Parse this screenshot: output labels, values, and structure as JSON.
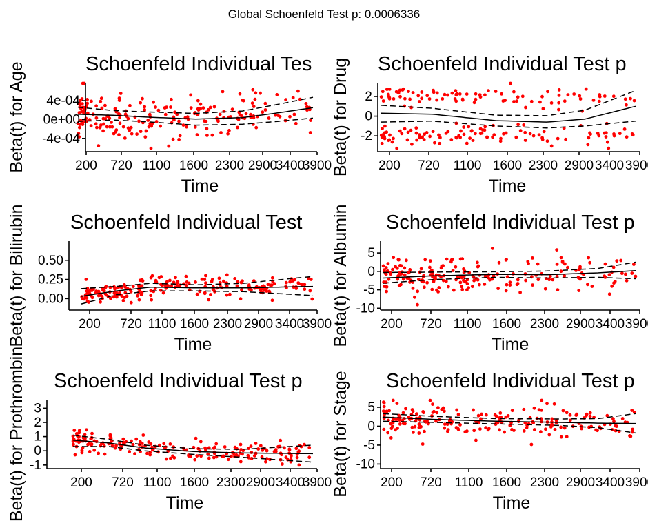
{
  "main_title": "Global Schoenfeld Test p: 0.0006336",
  "colors": {
    "points": "#ff0000",
    "line": "#000000",
    "background": "#ffffff"
  },
  "chart_data": [
    {
      "type": "scatter",
      "title": "Schoenfeld Individual Tes",
      "xlabel": "Time",
      "ylabel": "Beta(t) for Age",
      "xticks": [
        "200",
        "720",
        "1100",
        "1600",
        "2300",
        "2900",
        "3400",
        "3900"
      ],
      "yticks": [
        "4e-04",
        "0e+00",
        "-4e-04"
      ],
      "ytick_values": [
        0.0004,
        0,
        -0.0004
      ],
      "ylim": [
        -0.00068,
        0.00078
      ],
      "n_points": 210,
      "seed": 11,
      "point_spread": 0.00026,
      "fit": [
        [
          0,
          0.00011
        ],
        [
          0.15,
          9e-05
        ],
        [
          0.3,
          5e-05
        ],
        [
          0.5,
          1e-05
        ],
        [
          0.7,
          4e-05
        ],
        [
          0.85,
          0.00014
        ],
        [
          1,
          0.00025
        ]
      ],
      "upper": [
        [
          0,
          0.00026
        ],
        [
          0.15,
          0.00019
        ],
        [
          0.3,
          0.00016
        ],
        [
          0.5,
          0.00013
        ],
        [
          0.7,
          0.00018
        ],
        [
          0.85,
          0.00032
        ],
        [
          1,
          0.00047
        ]
      ],
      "lower": [
        [
          0,
          -4e-05
        ],
        [
          0.15,
          -1e-05
        ],
        [
          0.3,
          -5e-05
        ],
        [
          0.5,
          -0.00012
        ],
        [
          0.7,
          -0.0001
        ],
        [
          0.85,
          -4e-05
        ],
        [
          1,
          3e-05
        ]
      ]
    },
    {
      "type": "scatter",
      "title": "Schoenfeld Individual Test p",
      "xlabel": "Time",
      "ylabel": "Beta(t) for Drug",
      "xticks": [
        "200",
        "720",
        "1100",
        "1600",
        "2300",
        "2900",
        "3400",
        "3900"
      ],
      "yticks": [
        "2",
        "0",
        "-2"
      ],
      "ytick_values": [
        2,
        0,
        -2
      ],
      "ylim": [
        -3.6,
        3.4
      ],
      "n_points": 200,
      "seed": 23,
      "bimodal": true,
      "modes": [
        2.0,
        -2.0
      ],
      "point_spread": 0.5,
      "fit": [
        [
          0,
          0.3
        ],
        [
          0.2,
          0.2
        ],
        [
          0.45,
          -0.45
        ],
        [
          0.65,
          -0.6
        ],
        [
          0.8,
          -0.3
        ],
        [
          1,
          1.0
        ]
      ],
      "upper": [
        [
          0,
          1.1
        ],
        [
          0.2,
          0.8
        ],
        [
          0.45,
          0.1
        ],
        [
          0.65,
          0.05
        ],
        [
          0.8,
          0.6
        ],
        [
          1,
          2.6
        ]
      ],
      "lower": [
        [
          0,
          -0.6
        ],
        [
          0.2,
          -0.5
        ],
        [
          0.45,
          -1.0
        ],
        [
          0.65,
          -1.2
        ],
        [
          0.8,
          -1.0
        ],
        [
          1,
          -0.5
        ]
      ]
    },
    {
      "type": "scatter",
      "title": "Schoenfeld Individual Test",
      "xlabel": "Time",
      "ylabel": "Beta(t) for Bilirubin",
      "xticks": [
        "200",
        "720",
        "1100",
        "1600",
        "2300",
        "2900",
        "3400",
        "3900"
      ],
      "yticks": [
        "0.50",
        "0.25",
        "0.00"
      ],
      "ytick_values": [
        0.5,
        0.25,
        0
      ],
      "ylim": [
        -0.15,
        0.75
      ],
      "n_points": 210,
      "seed": 37,
      "point_spread": 0.07,
      "fit": [
        [
          0,
          0.03
        ],
        [
          0.15,
          0.1
        ],
        [
          0.3,
          0.15
        ],
        [
          0.5,
          0.14
        ],
        [
          0.7,
          0.14
        ],
        [
          1,
          0.16
        ]
      ],
      "upper": [
        [
          0,
          0.13
        ],
        [
          0.15,
          0.16
        ],
        [
          0.3,
          0.2
        ],
        [
          0.5,
          0.18
        ],
        [
          0.7,
          0.2
        ],
        [
          1,
          0.29
        ]
      ],
      "lower": [
        [
          0,
          -0.07
        ],
        [
          0.15,
          0.05
        ],
        [
          0.3,
          0.1
        ],
        [
          0.5,
          0.1
        ],
        [
          0.7,
          0.09
        ],
        [
          1,
          0.04
        ]
      ]
    },
    {
      "type": "scatter",
      "title": "Schoenfeld Individual Test p",
      "xlabel": "Time",
      "ylabel": "Beta(t) for Albumin",
      "xticks": [
        "200",
        "720",
        "1100",
        "1600",
        "2300",
        "2900",
        "3400",
        "3900"
      ],
      "yticks": [
        "5",
        "0",
        "-5",
        "-10"
      ],
      "ytick_values": [
        5,
        0,
        -5,
        -10
      ],
      "ylim": [
        -10.5,
        8.2
      ],
      "n_points": 210,
      "seed": 51,
      "point_spread": 2.4,
      "fit": [
        [
          0,
          -1.8
        ],
        [
          0.2,
          -1.2
        ],
        [
          0.45,
          -0.8
        ],
        [
          0.65,
          -0.9
        ],
        [
          0.85,
          -0.4
        ],
        [
          1,
          0.2
        ]
      ],
      "upper": [
        [
          0,
          -0.3
        ],
        [
          0.2,
          -0.2
        ],
        [
          0.45,
          -0.1
        ],
        [
          0.65,
          0.1
        ],
        [
          0.85,
          0.8
        ],
        [
          1,
          2.5
        ]
      ],
      "lower": [
        [
          0,
          -3.2
        ],
        [
          0.2,
          -2.2
        ],
        [
          0.45,
          -1.6
        ],
        [
          0.65,
          -1.8
        ],
        [
          0.85,
          -1.6
        ],
        [
          1,
          -2.0
        ]
      ]
    },
    {
      "type": "scatter",
      "title": "Schoenfeld Individual Test p",
      "xlabel": "Time",
      "ylabel": "Beta(t) for Prothrombin",
      "xticks": [
        "200",
        "720",
        "1100",
        "1600",
        "2300",
        "2900",
        "3400",
        "3900"
      ],
      "yticks": [
        "3",
        "2",
        "1",
        "0",
        "-1"
      ],
      "ytick_values": [
        3,
        2,
        1,
        0,
        -1
      ],
      "ylim": [
        -1.25,
        3.6
      ],
      "n_points": 200,
      "seed": 67,
      "point_spread": 0.35,
      "fit": [
        [
          0,
          0.75
        ],
        [
          0.15,
          0.55
        ],
        [
          0.3,
          0.2
        ],
        [
          0.5,
          -0.05
        ],
        [
          0.7,
          -0.15
        ],
        [
          1,
          -0.2
        ]
      ],
      "upper": [
        [
          0,
          1.1
        ],
        [
          0.15,
          0.8
        ],
        [
          0.3,
          0.4
        ],
        [
          0.5,
          0.15
        ],
        [
          0.7,
          0.1
        ],
        [
          1,
          0.4
        ]
      ],
      "lower": [
        [
          0,
          0.3
        ],
        [
          0.15,
          0.3
        ],
        [
          0.3,
          0.0
        ],
        [
          0.5,
          -0.25
        ],
        [
          0.7,
          -0.45
        ],
        [
          1,
          -0.8
        ]
      ]
    },
    {
      "type": "scatter",
      "title": "Schoenfeld Individual Test p",
      "xlabel": "Time",
      "ylabel": "Beta(t) for Stage",
      "xticks": [
        "200",
        "720",
        "1100",
        "1600",
        "2300",
        "2900",
        "3400",
        "3900"
      ],
      "yticks": [
        "5",
        "0",
        "-5",
        "-10"
      ],
      "ytick_values": [
        5,
        0,
        -5,
        -10
      ],
      "ylim": [
        -11.2,
        7.0
      ],
      "n_points": 210,
      "seed": 83,
      "point_spread": 2.0,
      "fit": [
        [
          0,
          2.4
        ],
        [
          0.2,
          1.8
        ],
        [
          0.45,
          1.3
        ],
        [
          0.7,
          1.0
        ],
        [
          0.85,
          0.8
        ],
        [
          1,
          0.7
        ]
      ],
      "upper": [
        [
          0,
          3.3
        ],
        [
          0.2,
          2.6
        ],
        [
          0.45,
          2.0
        ],
        [
          0.7,
          1.9
        ],
        [
          0.85,
          2.0
        ],
        [
          1,
          3.3
        ]
      ],
      "lower": [
        [
          0,
          1.3
        ],
        [
          0.2,
          1.0
        ],
        [
          0.45,
          0.6
        ],
        [
          0.7,
          0.2
        ],
        [
          0.85,
          -0.4
        ],
        [
          1,
          -1.8
        ]
      ]
    }
  ]
}
